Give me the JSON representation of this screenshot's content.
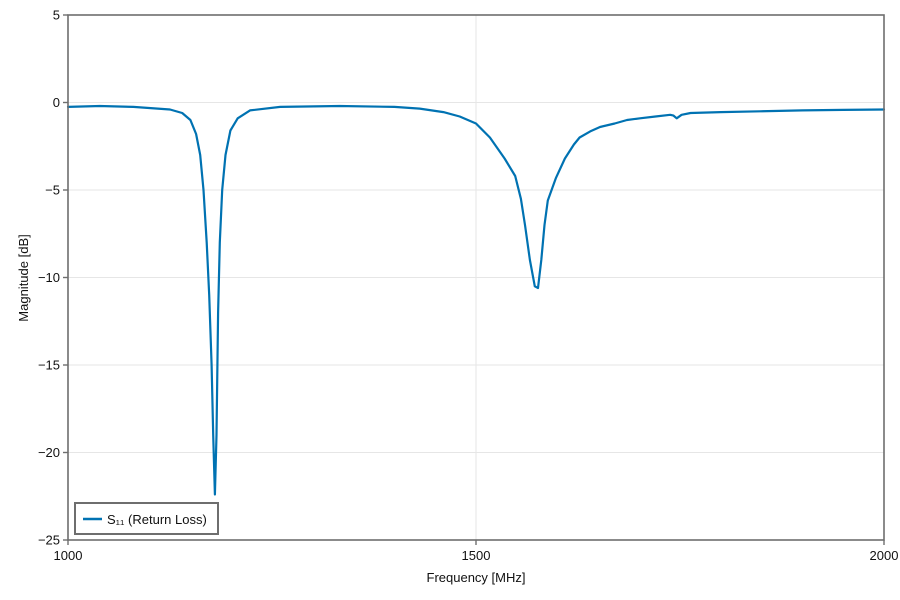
{
  "chart_data": {
    "type": "line",
    "title": "",
    "xlabel": "Frequency [MHz]",
    "ylabel": "Magnitude [dB]",
    "xlim": [
      1000,
      2000
    ],
    "ylim": [
      -25,
      5
    ],
    "xticks": [
      1000,
      1500,
      2000
    ],
    "xtick_labels": [
      "1000",
      "1500",
      "2000"
    ],
    "yticks": [
      5,
      0,
      -5,
      -10,
      -15,
      -20,
      -25
    ],
    "ytick_labels": [
      "5",
      "0",
      "−5",
      "−10",
      "−15",
      "−20",
      "−25"
    ],
    "grid": true,
    "legend_position": "lower left",
    "series": [
      {
        "name": "S₁₁ (Return Loss)",
        "color": "#0072b2",
        "x": [
          1000,
          1039,
          1080,
          1125,
          1140,
          1150,
          1157,
          1162,
          1166,
          1170,
          1173,
          1176,
          1178,
          1180,
          1182,
          1184,
          1186,
          1189,
          1193,
          1199,
          1208,
          1223,
          1260,
          1333,
          1400,
          1431,
          1460,
          1480,
          1500,
          1517,
          1535,
          1548,
          1555,
          1560,
          1566,
          1572,
          1576,
          1580,
          1584,
          1588,
          1598,
          1609,
          1620,
          1627,
          1640,
          1652,
          1670,
          1685,
          1701,
          1720,
          1738,
          1742,
          1746,
          1752,
          1763,
          1800,
          1848,
          1900,
          1950,
          2000
        ],
        "values": [
          -0.25,
          -0.2,
          -0.25,
          -0.4,
          -0.6,
          -1.0,
          -1.8,
          -3.0,
          -5.0,
          -8.0,
          -11.0,
          -15.0,
          -19.0,
          -22.4,
          -19.0,
          -12.0,
          -8.0,
          -5.0,
          -3.0,
          -1.6,
          -0.9,
          -0.45,
          -0.25,
          -0.2,
          -0.25,
          -0.35,
          -0.55,
          -0.8,
          -1.2,
          -2.0,
          -3.2,
          -4.2,
          -5.5,
          -7.0,
          -9.0,
          -10.5,
          -10.6,
          -9.0,
          -7.0,
          -5.6,
          -4.3,
          -3.2,
          -2.4,
          -2.0,
          -1.65,
          -1.4,
          -1.2,
          -1.0,
          -0.9,
          -0.8,
          -0.7,
          -0.75,
          -0.9,
          -0.7,
          -0.6,
          -0.55,
          -0.5,
          -0.45,
          -0.42,
          -0.4
        ]
      }
    ],
    "annotations": []
  },
  "legend": {
    "label": "S₁₁ (Return Loss)"
  },
  "colors": {
    "line": "#0072b2",
    "axis": "#6e6e6e",
    "grid": "#e6e6e6"
  }
}
